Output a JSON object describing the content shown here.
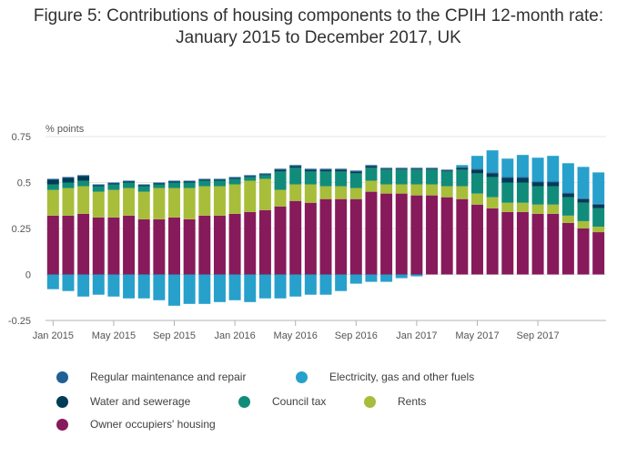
{
  "chart_data": {
    "type": "bar",
    "stacked": true,
    "title_line1": "Figure 5: Contributions of housing components to the CPIH 12-month rate:",
    "title_line2": "January 2015 to December 2017, UK",
    "ylabel": "% points",
    "ylim": [
      -0.25,
      0.75
    ],
    "yticks": [
      -0.25,
      0,
      0.25,
      0.5,
      0.75
    ],
    "ytick_labels": [
      "-0.25",
      "0",
      "0.25",
      "0.5",
      "0.75"
    ],
    "grid": true,
    "legend_position": "bottom",
    "x_tick_labels": [
      {
        "index": 0,
        "label": "Jan 2015"
      },
      {
        "index": 4,
        "label": "May 2015"
      },
      {
        "index": 8,
        "label": "Sep 2015"
      },
      {
        "index": 12,
        "label": "Jan 2016"
      },
      {
        "index": 16,
        "label": "May 2016"
      },
      {
        "index": 20,
        "label": "Sep 2016"
      },
      {
        "index": 24,
        "label": "Jan 2017"
      },
      {
        "index": 28,
        "label": "May 2017"
      },
      {
        "index": 32,
        "label": "Sep 2017"
      }
    ],
    "series": [
      {
        "name": "Owner occupiers' housing",
        "color": "#871A5B",
        "values": [
          0.32,
          0.32,
          0.33,
          0.31,
          0.31,
          0.32,
          0.3,
          0.3,
          0.31,
          0.3,
          0.32,
          0.32,
          0.33,
          0.34,
          0.35,
          0.37,
          0.4,
          0.39,
          0.41,
          0.41,
          0.41,
          0.45,
          0.44,
          0.44,
          0.43,
          0.43,
          0.42,
          0.41,
          0.38,
          0.36,
          0.34,
          0.34,
          0.33,
          0.33,
          0.28,
          0.25,
          0.23
        ]
      },
      {
        "name": "Rents",
        "color": "#A8BD3A",
        "values": [
          0.14,
          0.15,
          0.15,
          0.14,
          0.15,
          0.15,
          0.15,
          0.17,
          0.16,
          0.17,
          0.16,
          0.16,
          0.16,
          0.17,
          0.17,
          0.09,
          0.09,
          0.1,
          0.07,
          0.07,
          0.06,
          0.06,
          0.05,
          0.05,
          0.06,
          0.06,
          0.06,
          0.07,
          0.06,
          0.06,
          0.05,
          0.05,
          0.05,
          0.05,
          0.04,
          0.04,
          0.03
        ]
      },
      {
        "name": "Council tax",
        "color": "#118C7B",
        "values": [
          0.03,
          0.03,
          0.03,
          0.03,
          0.03,
          0.03,
          0.03,
          0.02,
          0.03,
          0.03,
          0.03,
          0.03,
          0.03,
          0.02,
          0.02,
          0.1,
          0.09,
          0.07,
          0.08,
          0.08,
          0.08,
          0.07,
          0.08,
          0.08,
          0.08,
          0.08,
          0.08,
          0.09,
          0.11,
          0.11,
          0.11,
          0.11,
          0.1,
          0.1,
          0.1,
          0.1,
          0.1
        ]
      },
      {
        "name": "Water and sewerage",
        "color": "#003C57",
        "values": [
          0.025,
          0.025,
          0.025,
          0.005,
          0.005,
          0.005,
          0.005,
          0.005,
          0.005,
          0.005,
          0.005,
          0.005,
          0.005,
          0.005,
          0.005,
          0.01,
          0.01,
          0.01,
          0.01,
          0.01,
          0.01,
          0.01,
          0.005,
          0.005,
          0.005,
          0.005,
          0.005,
          0.01,
          0.02,
          0.02,
          0.025,
          0.025,
          0.02,
          0.02,
          0.02,
          0.02,
          0.02
        ]
      },
      {
        "name": "Regular maintenance and repair",
        "color": "#206095",
        "values": [
          0.005,
          0.005,
          0.005,
          0.005,
          0.005,
          0.005,
          0.005,
          0.005,
          0.005,
          0.005,
          0.005,
          0.005,
          0.005,
          0.005,
          0.005,
          0.005,
          0.005,
          0.005,
          0.005,
          0.005,
          0.005,
          0.005,
          0.005,
          0.005,
          0.005,
          0.005,
          0.005,
          0.005,
          0.005,
          0.005,
          0.005,
          0.005,
          0.005,
          0.005,
          0.005,
          0.005,
          0.005
        ]
      },
      {
        "name": "Electricity, gas and other fuels",
        "color": "#27A0CC",
        "values": [
          -0.08,
          -0.09,
          -0.12,
          -0.11,
          -0.12,
          -0.13,
          -0.13,
          -0.14,
          -0.17,
          -0.16,
          -0.16,
          -0.15,
          -0.14,
          -0.15,
          -0.13,
          -0.13,
          -0.12,
          -0.11,
          -0.11,
          -0.09,
          -0.05,
          -0.04,
          -0.04,
          -0.02,
          -0.01,
          0,
          0,
          0.01,
          0.07,
          0.12,
          0.1,
          0.12,
          0.13,
          0.14,
          0.16,
          0.17,
          0.17
        ]
      }
    ]
  },
  "legend": {
    "items": [
      {
        "label": "Regular maintenance and repair",
        "color": "#206095"
      },
      {
        "label": "Electricity, gas and other fuels",
        "color": "#27A0CC"
      },
      {
        "label": "Water and sewerage",
        "color": "#003C57"
      },
      {
        "label": "Council tax",
        "color": "#118C7B"
      },
      {
        "label": "Rents",
        "color": "#A8BD3A"
      },
      {
        "label": "Owner occupiers' housing",
        "color": "#871A5B"
      }
    ]
  },
  "colors": {
    "axis": "#B3B3B3",
    "grid": "#E6E6E6",
    "tick_text": "#555555"
  }
}
